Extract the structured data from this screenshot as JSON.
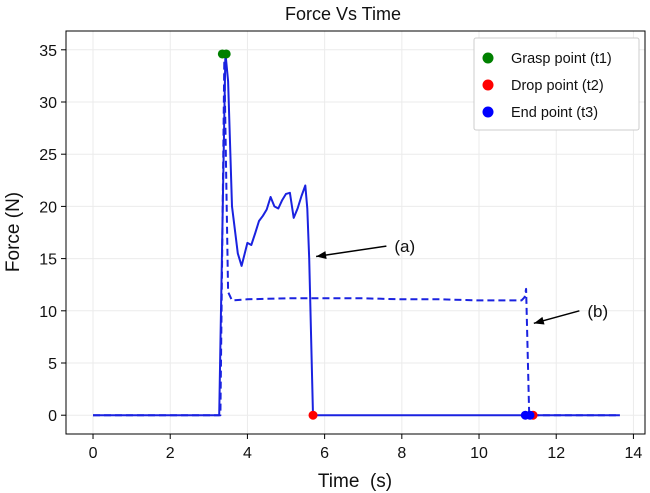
{
  "chart_data": {
    "type": "line",
    "title": "Force Vs Time",
    "xlabel": "Time  (s)",
    "ylabel": "Force (N)",
    "xlim": [
      -0.7,
      14.3
    ],
    "ylim": [
      -1.8,
      36.8
    ],
    "xticks": [
      0,
      2,
      4,
      6,
      8,
      10,
      12,
      14
    ],
    "yticks": [
      0,
      5,
      10,
      15,
      20,
      25,
      30,
      35
    ],
    "grid": true,
    "legend_position": "top-right",
    "series": [
      {
        "name": "solid",
        "style": "solid",
        "color": "#1a22e0",
        "x": [
          0,
          0.6,
          3.27,
          3.43,
          3.5,
          3.6,
          3.75,
          3.85,
          4.0,
          4.1,
          4.2,
          4.3,
          4.4,
          4.5,
          4.6,
          4.7,
          4.8,
          4.9,
          5.0,
          5.1,
          5.2,
          5.3,
          5.4,
          5.5,
          5.55,
          5.6,
          5.7,
          5.72,
          13.65
        ],
        "y": [
          0,
          0,
          0,
          34.7,
          32,
          20.0,
          15.5,
          14.3,
          16.5,
          16.3,
          17.4,
          18.6,
          19.1,
          19.7,
          20.9,
          20.0,
          19.8,
          20.6,
          21.2,
          21.3,
          18.9,
          19.8,
          21.0,
          22.0,
          19.8,
          15.0,
          0,
          0,
          0
        ]
      },
      {
        "name": "dashed",
        "style": "dashed",
        "color": "#1a22e0",
        "x": [
          0,
          3.3,
          3.4,
          3.5,
          3.6,
          4.0,
          5.0,
          6.0,
          7.0,
          8.0,
          9.0,
          10.0,
          11.0,
          11.1,
          11.18,
          11.22,
          11.3,
          11.4,
          13.65
        ],
        "y": [
          0,
          0,
          34.0,
          11.8,
          11.0,
          11.1,
          11.2,
          11.2,
          11.2,
          11.1,
          11.1,
          11.0,
          11.0,
          11.0,
          11.3,
          12.1,
          0,
          0,
          0
        ]
      }
    ],
    "markers": [
      {
        "label": "Grasp point (t1)",
        "color": "#008000",
        "points": [
          [
            3.35,
            34.6
          ],
          [
            3.45,
            34.6
          ]
        ]
      },
      {
        "label": "Drop point (t2)",
        "color": "#ff0000",
        "points": [
          [
            5.7,
            0
          ],
          [
            11.4,
            0
          ]
        ]
      },
      {
        "label": "End point (t3)",
        "color": "#0000ff",
        "points": [
          [
            11.2,
            0
          ],
          [
            11.32,
            0
          ]
        ]
      }
    ],
    "annotations": [
      {
        "text": "(a)",
        "arrow_from": [
          7.6,
          16.2
        ],
        "arrow_to": [
          5.78,
          15.2
        ]
      },
      {
        "text": "(b)",
        "arrow_from": [
          12.6,
          10.0
        ],
        "arrow_to": [
          11.42,
          8.8
        ]
      }
    ]
  }
}
